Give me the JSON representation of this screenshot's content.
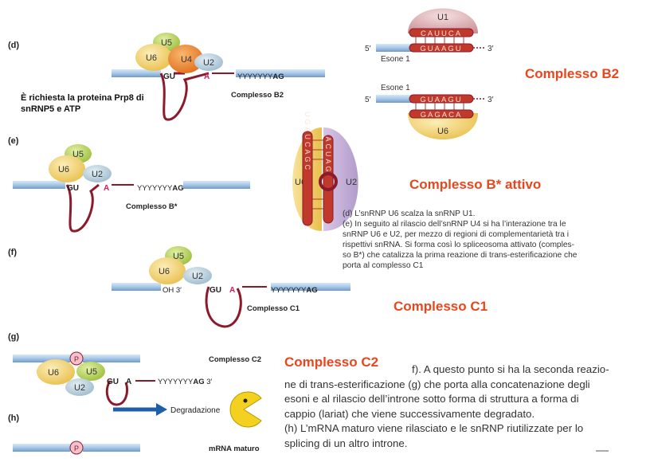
{
  "panels": {
    "d": {
      "letter": "(d)",
      "u5": "U5",
      "u6": "U6",
      "u4": "U4",
      "u2": "U2",
      "gu": "GU",
      "a": "A",
      "yy": "YYYYYYY",
      "ag": "AG",
      "name": "Complesso B2",
      "note_line1": "È richiesta la proteina Prp8 di",
      "note_line2": "snRNP5 e ATP"
    },
    "e": {
      "letter": "(e)",
      "u5": "U5",
      "u6": "U6",
      "u2": "U2",
      "gu": "GU",
      "a": "A",
      "yy": "YYYYYYY",
      "ag": "AG",
      "name": "Complesso B*"
    },
    "f": {
      "letter": "(f)",
      "u5": "U5",
      "u6": "U6",
      "u2": "U2",
      "oh": "OH 3′",
      "gu": "GU",
      "a": "A",
      "yy": "YYYYYYY",
      "ag": "AG",
      "name": "Complesso C1"
    },
    "g": {
      "letter": "(g)",
      "p": "P",
      "u6": "U6",
      "u5": "U5",
      "u2": "U2",
      "gu": "GU",
      "a": "A",
      "yy": "YYYYYYY",
      "ag": "AG",
      "three": " 3′",
      "name": "Complesso C2",
      "degradation": "Degradazione"
    },
    "h": {
      "letter": "(h)",
      "p": "P",
      "name": "mRNA maturo"
    }
  },
  "insets": {
    "u1_pair": {
      "u1": "U1",
      "top_seq": "CAUUCA",
      "bottom_seq": "GUAAGU",
      "five": "5′",
      "three": "3′",
      "exon": "Esone 1"
    },
    "u6_pair": {
      "u6": "U6",
      "top_seq": "GUAAGU",
      "bottom_seq": "GAGACA",
      "five": "5′",
      "three": "3′",
      "exon": "Esone 1"
    },
    "u6u2": {
      "u6": "U6",
      "u2": "U2",
      "left_seq": "UGAUCAGC",
      "right_seq": "ACUAG"
    }
  },
  "headings": {
    "b2": "Complesso B2",
    "bstar": "Complesso B* attivo",
    "c1": "Complesso C1",
    "c2": "Complesso C2"
  },
  "captions": {
    "de_lines": [
      "(d) L’snRNP U6 scalza la snRNP U1.",
      "(e) In seguito al rilascio dell’snRNP U4 si ha l’interazione tra le",
      "snRNP U6 e U2, per mezzo di regioni di complementarietà tra i",
      "rispettivi snRNA. Si forma così lo spliceosoma attivato (comples-",
      "so B*) che catalizza la prima reazione di trans-esterificazione che",
      "porta al complesso C1"
    ],
    "fgh_lines": [
      "f). A questo punto si ha la seconda reazio-",
      "ne di trans-esterificazione (g) che porta alla concatenazione degli",
      "esoni e al rilascio dell’introne sotto forma di struttura a forma di",
      "cappio (lariat) che viene successivamente degradato.",
      "(h) L’mRNA maturo viene rilasciato e le snRNP riutilizzate per lo",
      "splicing di un altro introne."
    ]
  },
  "colors": {
    "u5": "#a9c94a",
    "u6": "#f1cf6a",
    "u4": "#ee8a2b",
    "u2": "#b9d0de",
    "exon": "#a7c7e7",
    "intron": "#8b1a2b",
    "highlight": "#e8471e",
    "a_color": "#d81b60"
  }
}
